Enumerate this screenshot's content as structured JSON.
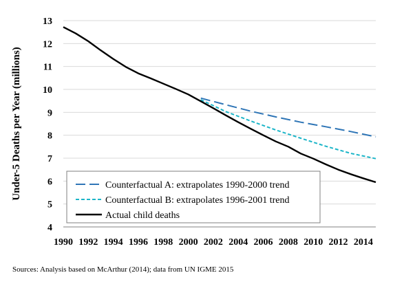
{
  "chart_data": {
    "type": "line",
    "ylabel": "Under-5 Deaths per Year (millions)",
    "xlabel": "",
    "xlim": [
      1990,
      2015
    ],
    "ylim": [
      4,
      13
    ],
    "xticks": [
      1990,
      1992,
      1994,
      1996,
      1998,
      2000,
      2002,
      2004,
      2006,
      2008,
      2010,
      2012,
      2014
    ],
    "yticks": [
      4,
      5,
      6,
      7,
      8,
      9,
      10,
      11,
      12,
      13
    ],
    "grid": "horizontal",
    "legend_position": "bottom-left",
    "series": [
      {
        "name": "Counterfactual A: extrapolates 1990-2000 trend",
        "style": "long-dash",
        "color": "#2e75b6",
        "x": [
          2001,
          2003,
          2005,
          2007,
          2009,
          2011,
          2013,
          2015
        ],
        "y": [
          9.62,
          9.33,
          9.05,
          8.8,
          8.57,
          8.37,
          8.16,
          7.93
        ]
      },
      {
        "name": "Counterfactual B: extrapolates 1996-2001 trend",
        "style": "short-dash",
        "color": "#1bb5c8",
        "x": [
          2001,
          2003,
          2005,
          2007,
          2009,
          2011,
          2013,
          2015
        ],
        "y": [
          9.55,
          9.03,
          8.62,
          8.23,
          7.87,
          7.52,
          7.21,
          6.98
        ]
      },
      {
        "name": "Actual child deaths",
        "style": "solid",
        "color": "#000000",
        "x": [
          1990,
          1991,
          1992,
          1993,
          1994,
          1995,
          1996,
          1997,
          1998,
          1999,
          2000,
          2001,
          2002,
          2003,
          2004,
          2005,
          2006,
          2007,
          2008,
          2009,
          2010,
          2011,
          2012,
          2013,
          2014,
          2015
        ],
        "y": [
          12.72,
          12.44,
          12.1,
          11.7,
          11.33,
          10.98,
          10.7,
          10.48,
          10.25,
          10.02,
          9.78,
          9.48,
          9.18,
          8.87,
          8.57,
          8.28,
          8.0,
          7.73,
          7.5,
          7.2,
          6.98,
          6.73,
          6.5,
          6.3,
          6.12,
          5.95
        ]
      }
    ]
  },
  "source_note": "Sources: Analysis based on McArthur (2014); data from UN IGME 2015"
}
